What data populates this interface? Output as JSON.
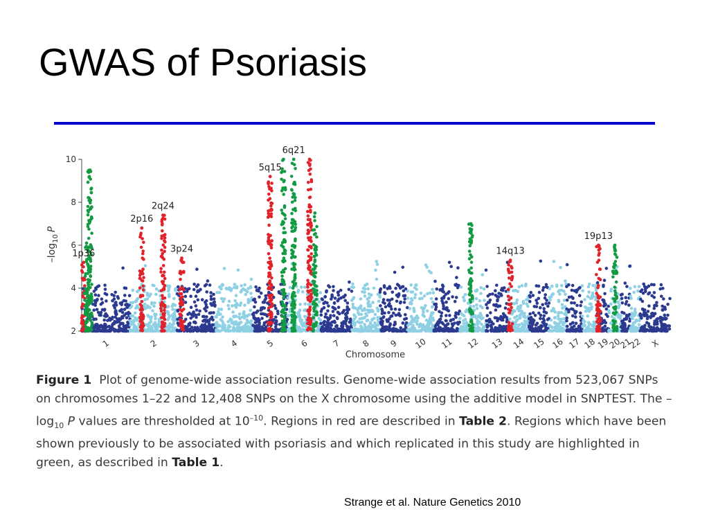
{
  "slide": {
    "title": "GWAS of Psoriasis",
    "accent_color": "#0000cc",
    "citation": "Strange et al. Nature Genetics 2010"
  },
  "caption": {
    "label": "Figure 1",
    "text1": "Plot of genome-wide association results. Genome-wide association results from 523,067 SNPs on chromosomes 1–22 and 12,408 SNPs on the X chromosome using the additive model in SNPTEST. The –log",
    "sub": "10",
    "p": "P",
    "text2": "values are thresholded at 10",
    "sup": "–10",
    "text3": ". Regions in red are described in",
    "table2": "Table 2",
    "text4": ". Regions which have been shown previously to be associated with psoriasis and which replicated in this study are highlighted in green, as described in",
    "table1": "Table 1",
    "text5": "."
  },
  "chart_data": {
    "type": "scatter",
    "xlabel": "Chromosome",
    "ylabel_prefix": "–log",
    "ylabel_sub": "10",
    "ylabel_suffix": "P",
    "ylim": [
      2,
      10
    ],
    "yticks": [
      2,
      4,
      6,
      8,
      10
    ],
    "colors": {
      "odd": "#2b3a8f",
      "even": "#8fd0e4",
      "red": "#e0232b",
      "green": "#139a43"
    },
    "chromosomes": [
      {
        "label": "1",
        "len": 249
      },
      {
        "label": "2",
        "len": 243
      },
      {
        "label": "3",
        "len": 198
      },
      {
        "label": "4",
        "len": 191
      },
      {
        "label": "5",
        "len": 181
      },
      {
        "label": "6",
        "len": 171
      },
      {
        "label": "7",
        "len": 159
      },
      {
        "label": "8",
        "len": 146
      },
      {
        "label": "9",
        "len": 141
      },
      {
        "label": "10",
        "len": 136
      },
      {
        "label": "11",
        "len": 135
      },
      {
        "label": "12",
        "len": 134
      },
      {
        "label": "13",
        "len": 115
      },
      {
        "label": "14",
        "len": 107
      },
      {
        "label": "15",
        "len": 103
      },
      {
        "label": "16",
        "len": 90
      },
      {
        "label": "17",
        "len": 81
      },
      {
        "label": "18",
        "len": 78
      },
      {
        "label": "19",
        "len": 59
      },
      {
        "label": "20",
        "len": 63
      },
      {
        "label": "21",
        "len": 48
      },
      {
        "label": "22",
        "len": 51
      },
      {
        "label": "X",
        "len": 155
      }
    ],
    "highlights": [
      {
        "label": "1p36",
        "chrom": "1",
        "pos": 0.04,
        "color": "red",
        "max": 5.2
      },
      {
        "label": "",
        "chrom": "1",
        "pos": 0.1,
        "color": "green",
        "max": 6.1
      },
      {
        "label": "",
        "chrom": "1",
        "pos": 0.17,
        "color": "green",
        "max": 9.5
      },
      {
        "label": "2p16",
        "chrom": "2",
        "pos": 0.25,
        "color": "red",
        "max": 6.8
      },
      {
        "label": "2q24",
        "chrom": "2",
        "pos": 0.7,
        "color": "red",
        "max": 7.4
      },
      {
        "label": "3p24",
        "chrom": "3",
        "pos": 0.12,
        "color": "red",
        "max": 5.4
      },
      {
        "label": "5q15",
        "chrom": "5",
        "pos": 0.5,
        "color": "red",
        "max": 9.2
      },
      {
        "label": "",
        "chrom": "5",
        "pos": 0.88,
        "color": "green",
        "max": 10
      },
      {
        "label": "6q21",
        "chrom": "6",
        "pos": 0.18,
        "color": "green",
        "max": 10
      },
      {
        "label": "",
        "chrom": "6",
        "pos": 0.66,
        "color": "red",
        "max": 10
      },
      {
        "label": "",
        "chrom": "6",
        "pos": 0.82,
        "color": "green",
        "max": 7.5
      },
      {
        "label": "",
        "chrom": "12",
        "pos": 0.42,
        "color": "green",
        "max": 7
      },
      {
        "label": "14q13",
        "chrom": "14",
        "pos": 0.1,
        "color": "red",
        "max": 5.3
      },
      {
        "label": "19p13",
        "chrom": "19",
        "pos": 0.1,
        "color": "red",
        "max": 6.0
      },
      {
        "label": "",
        "chrom": "20",
        "pos": 0.5,
        "color": "green",
        "max": 6
      }
    ]
  }
}
